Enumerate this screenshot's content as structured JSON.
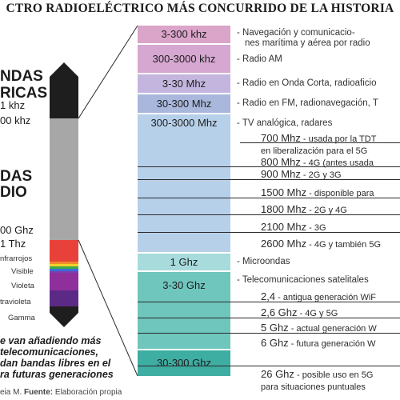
{
  "title": "CTRO RADIOELÉCTRICO MÁS CONCURRIDO DE LA HISTORIA",
  "left": {
    "ondas_label": "NDAS",
    "ricas_label": "RICAS",
    "khz1": "1 khz",
    "khz300": "00 khz",
    "das_label": "DAS",
    "dio_label": "DIO",
    "ghz300": "00 Ghz",
    "thz1": "1 Thz",
    "infrarrojos": "nfrarrojos",
    "visible": "Visible",
    "violeta": "Violeta",
    "ultravioleta": "travioleta",
    "gamma": "Gamma",
    "note_lines": [
      "e van añadiendo más",
      "telecomunicaciones,",
      "dan bandas libres en el",
      "ra futuras generaciones"
    ],
    "footer_prefix": "eia M. ",
    "footer_key": "Fuente:",
    "footer_value": " Elaboración propia"
  },
  "bands": [
    {
      "freq": "3-300 khz",
      "desc_lines": [
        "- Navegación y comunicacio-",
        "nes marítima y aérea por radio"
      ]
    },
    {
      "freq": "300-3000 khz",
      "desc_lines": [
        "- Radio AM"
      ]
    },
    {
      "freq": "3-30 Mhz",
      "desc_lines": [
        "- Radio en Onda Corta, radioaficio"
      ]
    },
    {
      "freq": "30-300 Mhz",
      "desc_lines": [
        "- Radio en FM, radionavegación, T"
      ]
    },
    {
      "freq": "300-3000 Mhz",
      "desc_lines": [
        "- TV analógica, radares"
      ]
    },
    {
      "freq": "1 Ghz",
      "desc_lines": [
        "- Microondas"
      ]
    },
    {
      "freq": "3-30 Ghz",
      "desc_lines": [
        "- Telecomunicaciones satelitales"
      ]
    },
    {
      "freq": "30-300 Ghz",
      "desc_lines": []
    }
  ],
  "uhf_items": [
    {
      "freq": "700 Mhz",
      "desc": " - usada por la TDT"
    },
    {
      "freq": "",
      "desc": "en liberalización para el 5G"
    },
    {
      "freq": "800 Mhz",
      "desc": " - 4G (antes usada"
    },
    {
      "freq": "900 Mhz",
      "desc": " - 2G y 3G"
    },
    {
      "freq": "1500 Mhz",
      "desc": " - disponible para"
    },
    {
      "freq": "1800 Mhz",
      "desc": " - 2G y 4G"
    },
    {
      "freq": "2100 Mhz",
      "desc": " - 3G"
    },
    {
      "freq": "2600 Mhz",
      "desc": " - 4G y también 5G"
    }
  ],
  "shf_items": [
    {
      "freq": "2,4",
      "desc": " - antigua generación WiF"
    },
    {
      "freq": "2,6 Ghz",
      "desc": " - 4G y 5G"
    },
    {
      "freq": "5 Ghz",
      "desc": " - actual generación W"
    },
    {
      "freq": "6 Ghz",
      "desc": " - futura generación W"
    }
  ],
  "ehf_items": [
    {
      "freq": "26 Ghz",
      "desc": " - posible uso en 5G"
    },
    {
      "freq": "",
      "desc": "para situaciones puntuales"
    }
  ],
  "colors": {
    "band_pink": "#dba4c9",
    "band_lavender": "#c4b5de",
    "band_blue": "#a9b7dc",
    "band_lightblue": "#b7d0ea",
    "band_cyan": "#a7dbdc",
    "band_teal": "#6fc6bd",
    "band_teal_dark": "#3eada2",
    "stick_gray": "#a7a7a7",
    "stick_black": "#1e1e1e"
  }
}
